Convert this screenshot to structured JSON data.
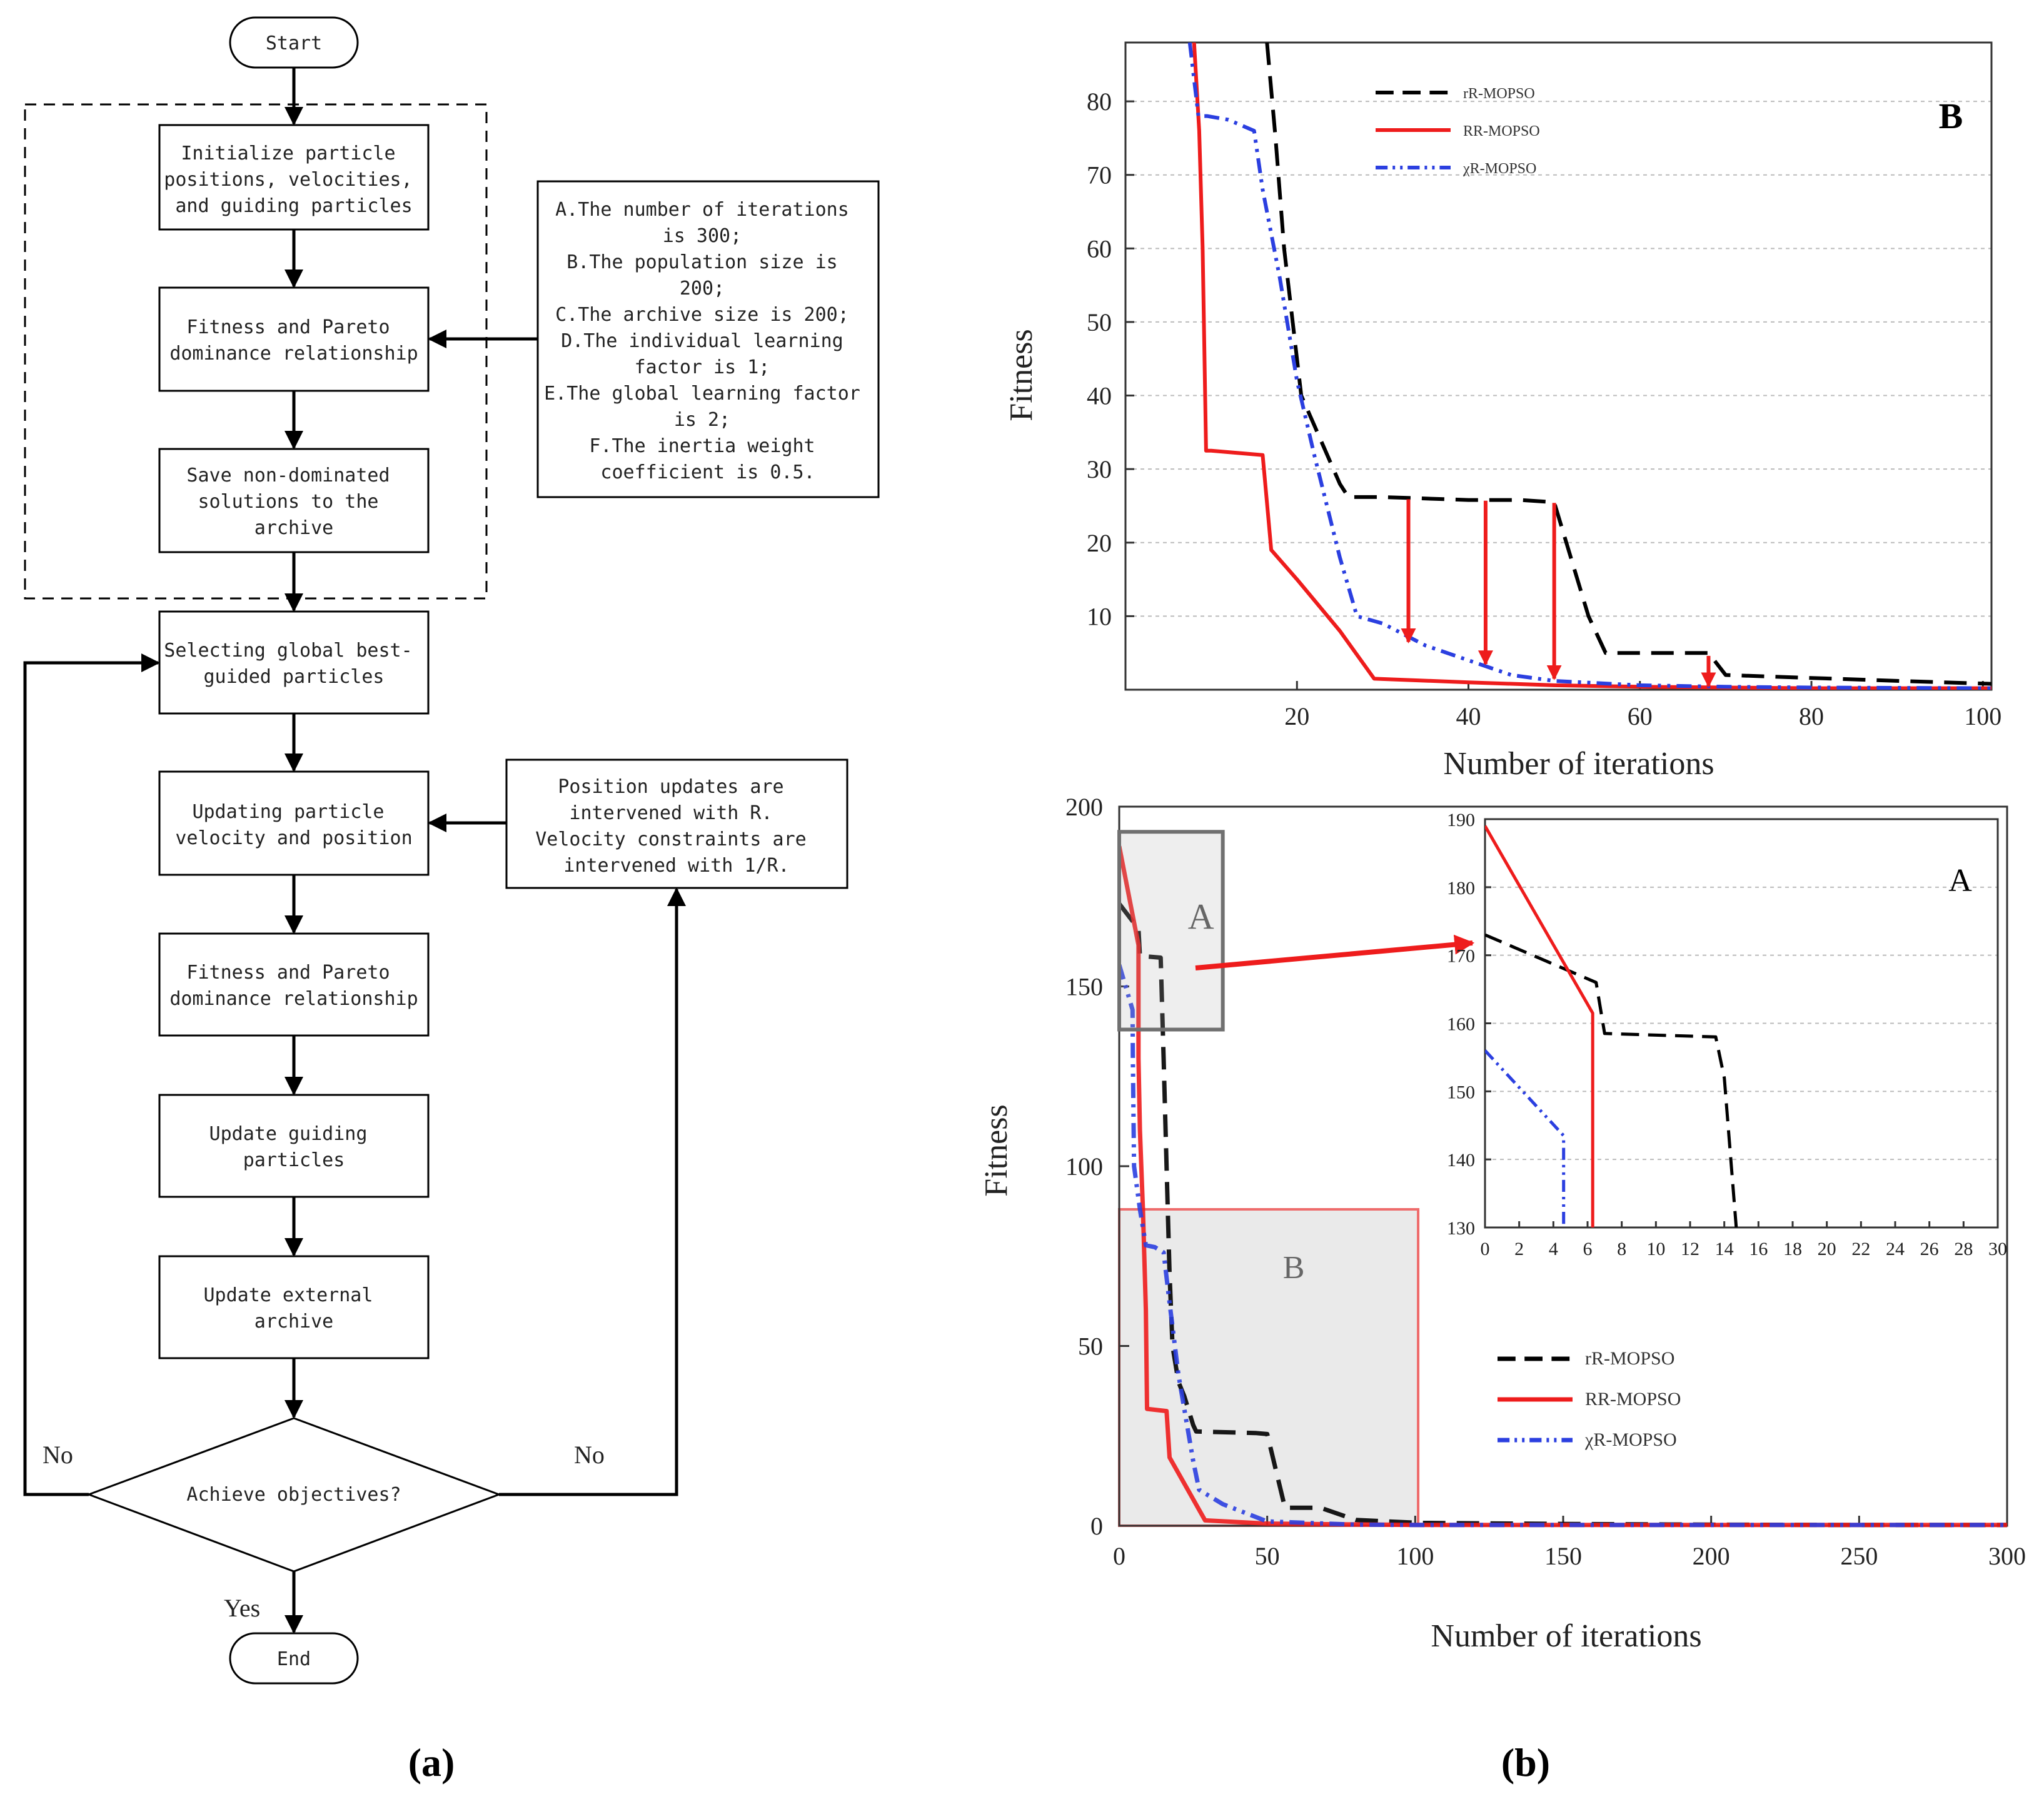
{
  "flowchart": {
    "start": "Start",
    "end": "End",
    "steps": [
      [
        "Initialize particle",
        "positions, velocities,",
        "and guiding particles"
      ],
      [
        "Fitness and Pareto",
        "dominance relationship"
      ],
      [
        "Save non-dominated",
        "solutions to the",
        "archive"
      ],
      [
        "Selecting global best-",
        "guided particles"
      ],
      [
        "Updating particle",
        "velocity and position"
      ],
      [
        "Fitness and Pareto",
        "dominance relationship"
      ],
      [
        "Update guiding",
        "particles"
      ],
      [
        "Update external",
        "archive"
      ]
    ],
    "decision": "Achieve objectives?",
    "no_left": "No",
    "no_right": "No",
    "yes": "Yes",
    "params_note": [
      "A.The number of iterations",
      "is 300;",
      "B.The population size is",
      "200;",
      "C.The archive size is 200;",
      "D.The individual learning",
      "factor is 1;",
      "E.The global learning factor",
      "is 2;",
      "F.The inertia weight",
      "coefficient is 0.5."
    ],
    "r_note": [
      "Position updates are",
      "intervened with R.",
      "Velocity constraints are",
      "intervened with 1/R."
    ]
  },
  "captions": {
    "a": "(a)",
    "b": "(b)"
  },
  "colors": {
    "black_series": "#000000",
    "red_series": "#ee1c1c",
    "blue_series": "#2b3fe0",
    "arrow": "#ee1c1c"
  },
  "chart_data": [
    {
      "type": "line",
      "panel_label": "B",
      "xlabel": "Number of iterations",
      "ylabel": "Fitness",
      "xlim": [
        0,
        101
      ],
      "ylim": [
        0,
        88
      ],
      "xticks": [
        20,
        40,
        60,
        80,
        100
      ],
      "yticks": [
        10,
        20,
        30,
        40,
        50,
        60,
        70,
        80
      ],
      "legend": [
        "rR-MOPSO",
        "RR-MOPSO",
        "χR-MOPSO"
      ],
      "series": [
        {
          "name": "rR-MOPSO",
          "style": "dashed",
          "x": [
            16.5,
            17.5,
            18.5,
            19.5,
            20.5,
            22,
            25,
            26,
            30,
            40,
            46,
            50,
            54,
            56,
            60,
            68,
            70,
            80,
            90,
            101
          ],
          "y": [
            88,
            75,
            60,
            50,
            40,
            36,
            28,
            26.2,
            26.2,
            25.8,
            25.8,
            25.5,
            10,
            5,
            5,
            5,
            2,
            1.6,
            1.2,
            0.8
          ]
        },
        {
          "name": "RR-MOPSO",
          "style": "solid",
          "x": [
            8,
            8.6,
            9,
            9.4,
            10,
            16,
            17,
            20,
            25,
            29,
            40,
            50,
            60,
            70,
            80,
            101
          ],
          "y": [
            88,
            76,
            60,
            32.5,
            32.5,
            31.9,
            19,
            15,
            8,
            1.5,
            1.0,
            0.6,
            0.4,
            0.3,
            0.2,
            0.2
          ]
        },
        {
          "name": "χR-MOPSO",
          "style": "dashdot",
          "x": [
            7.5,
            8.5,
            9.5,
            12,
            14,
            15,
            16,
            17,
            18,
            20,
            22,
            25,
            27,
            30,
            35,
            40,
            45,
            50,
            60,
            70,
            80,
            101
          ],
          "y": [
            88,
            78,
            78,
            77.5,
            76.5,
            76,
            68,
            62,
            56,
            42,
            32,
            18,
            10,
            9,
            6,
            4,
            2,
            1.2,
            0.6,
            0.4,
            0.3,
            0.2
          ]
        }
      ],
      "annotations": [
        {
          "x": 33,
          "y_from": 25.9,
          "y_to": 6.5
        },
        {
          "x": 42,
          "y_from": 25.7,
          "y_to": 3.5
        },
        {
          "x": 50,
          "y_from": 25.4,
          "y_to": 1.5
        },
        {
          "x": 68,
          "y_from": 4.6,
          "y_to": 0.5
        }
      ]
    },
    {
      "type": "line",
      "panel_label": "",
      "xlabel": "Number of iterations",
      "ylabel": "Fitness",
      "xlim": [
        0,
        300
      ],
      "ylim": [
        0,
        200
      ],
      "xticks": [
        0,
        50,
        100,
        150,
        200,
        250,
        300
      ],
      "yticks": [
        0,
        50,
        100,
        150,
        200
      ],
      "legend": [
        "rR-MOPSO",
        "RR-MOPSO",
        "χR-MOPSO"
      ],
      "zoom_boxes": [
        {
          "label": "A",
          "x0": 0,
          "x1": 35,
          "y0": 138,
          "y1": 193
        },
        {
          "label": "B",
          "x0": 0,
          "x1": 101,
          "y0": 0,
          "y1": 88
        }
      ],
      "series": [
        {
          "name": "rR-MOPSO",
          "style": "dashed",
          "x": [
            0,
            6.5,
            7,
            14,
            15,
            16,
            17,
            18,
            20,
            22,
            25,
            26,
            46,
            50,
            56,
            68,
            80,
            101,
            150,
            200,
            250,
            300
          ],
          "y": [
            173,
            166,
            158.5,
            158,
            130,
            100,
            70,
            50,
            40,
            36,
            28,
            26.2,
            25.8,
            25.5,
            5,
            5,
            1.6,
            0.8,
            0.5,
            0.3,
            0.2,
            0.2
          ]
        },
        {
          "name": "RR-MOPSO",
          "style": "solid",
          "x": [
            0,
            6.5,
            6.5,
            7,
            8,
            9,
            9.4,
            16,
            17,
            29,
            50,
            101,
            150,
            200,
            250,
            300
          ],
          "y": [
            189,
            161.5,
            130,
            110,
            88,
            60,
            32.5,
            31.9,
            19,
            1.5,
            0.6,
            0.2,
            0.2,
            0.2,
            0.2,
            0.2
          ]
        },
        {
          "name": "χR-MOPSO",
          "style": "dashdot",
          "x": [
            0,
            4.5,
            4.6,
            5,
            7,
            9,
            12,
            15,
            17,
            20,
            25,
            27,
            35,
            50,
            80,
            101,
            150,
            200,
            250,
            300
          ],
          "y": [
            156,
            143.5,
            130,
            100,
            88,
            78,
            77.5,
            76,
            62,
            42,
            18,
            10,
            6,
            1.2,
            0.3,
            0.2,
            0.2,
            0.2,
            0.2,
            0.2
          ]
        }
      ]
    },
    {
      "type": "line",
      "panel_label": "A",
      "xlabel": "",
      "ylabel": "",
      "xlim": [
        0,
        30
      ],
      "ylim": [
        130,
        190
      ],
      "xticks": [
        0,
        2,
        4,
        6,
        8,
        10,
        12,
        14,
        16,
        18,
        20,
        22,
        24,
        26,
        28,
        30
      ],
      "yticks": [
        130,
        140,
        150,
        160,
        170,
        180,
        190
      ],
      "legend": [],
      "series": [
        {
          "name": "rR-MOPSO",
          "style": "dashed",
          "x": [
            0,
            6.5,
            7,
            13.5,
            14,
            14.7
          ],
          "y": [
            173,
            166,
            158.5,
            158,
            152,
            130
          ]
        },
        {
          "name": "RR-MOPSO",
          "style": "solid",
          "x": [
            0,
            6.3,
            6.3
          ],
          "y": [
            189,
            161.5,
            130
          ]
        },
        {
          "name": "χR-MOPSO",
          "style": "dashdot",
          "x": [
            0,
            4.6,
            4.6
          ],
          "y": [
            156,
            143.5,
            130
          ]
        }
      ]
    }
  ]
}
